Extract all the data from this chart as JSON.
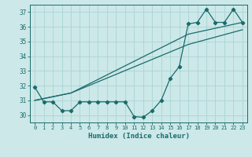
{
  "xlabel": "Humidex (Indice chaleur)",
  "bg_color": "#cce8e8",
  "grid_color": "#aad4d4",
  "line_color": "#1a6b6b",
  "xlim": [
    -0.5,
    23.5
  ],
  "ylim": [
    29.5,
    37.5
  ],
  "yticks": [
    30,
    31,
    32,
    33,
    34,
    35,
    36,
    37
  ],
  "xticks": [
    0,
    1,
    2,
    3,
    4,
    5,
    6,
    7,
    8,
    9,
    10,
    11,
    12,
    13,
    14,
    15,
    16,
    17,
    18,
    19,
    20,
    21,
    22,
    23
  ],
  "series1_x": [
    0,
    1,
    2,
    3,
    4,
    5,
    6,
    7,
    8,
    9,
    10,
    11,
    12,
    13,
    14,
    15,
    16,
    17,
    18,
    19,
    20,
    21,
    22,
    23
  ],
  "series1_y": [
    31.9,
    30.9,
    30.9,
    30.3,
    30.3,
    30.9,
    30.9,
    30.9,
    30.9,
    30.9,
    30.9,
    29.9,
    29.85,
    30.3,
    31.0,
    32.5,
    33.3,
    36.2,
    36.3,
    37.2,
    36.3,
    36.3,
    37.2,
    36.3
  ],
  "series2_x": [
    0,
    4,
    17,
    23
  ],
  "series2_y": [
    31.0,
    31.5,
    35.5,
    36.3
  ],
  "series3_x": [
    0,
    4,
    17,
    23
  ],
  "series3_y": [
    31.0,
    31.5,
    34.8,
    35.8
  ]
}
